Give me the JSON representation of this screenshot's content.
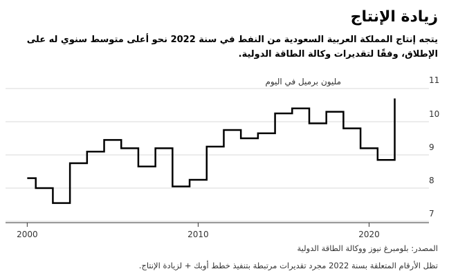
{
  "header": {
    "title": "زيادة الإنتاج",
    "subtitle": "يتجه إنتاج المملكة العربية السعودية من النفط في سنة 2022 نحو أعلى متوسط سنوي له على الإطلاق، وفقًا لتقديرات وكالة الطاقة الدولية."
  },
  "footer": {
    "source": "المصدر: بلومبرغ نيوز ووكالة الطاقة الدولية",
    "note": "تظل الأرقام المتعلقة بسنة 2022 مجرد تقديرات مرتبطة بتنفيذ خطط أوبك + لزيادة الإنتاج."
  },
  "colors": {
    "line": "#000000",
    "grid": "#d9d9d9",
    "axis": "#333333",
    "text": "#333333"
  },
  "chart_data": {
    "type": "line",
    "step": true,
    "ylabel": "مليون برميل في اليوم",
    "ylim": [
      7,
      11
    ],
    "yticks": [
      7,
      8,
      9,
      10,
      11
    ],
    "xlim": [
      1999.5,
      2023.3
    ],
    "xticks": [
      2000,
      2010,
      2020
    ],
    "grid": true,
    "series": [
      {
        "x": [
          2000,
          2001,
          2002,
          2003,
          2004,
          2005,
          2006,
          2007,
          2008,
          2009,
          2010,
          2011,
          2012,
          2013,
          2014,
          2015,
          2016,
          2017,
          2018,
          2019,
          2020,
          2021,
          2022
        ],
        "values": [
          8.3,
          8.0,
          7.55,
          8.75,
          9.1,
          9.45,
          9.2,
          8.65,
          9.2,
          8.05,
          8.25,
          9.25,
          9.75,
          9.5,
          9.65,
          10.25,
          10.4,
          9.95,
          10.3,
          9.8,
          9.2,
          8.85,
          10.7
        ]
      }
    ]
  }
}
